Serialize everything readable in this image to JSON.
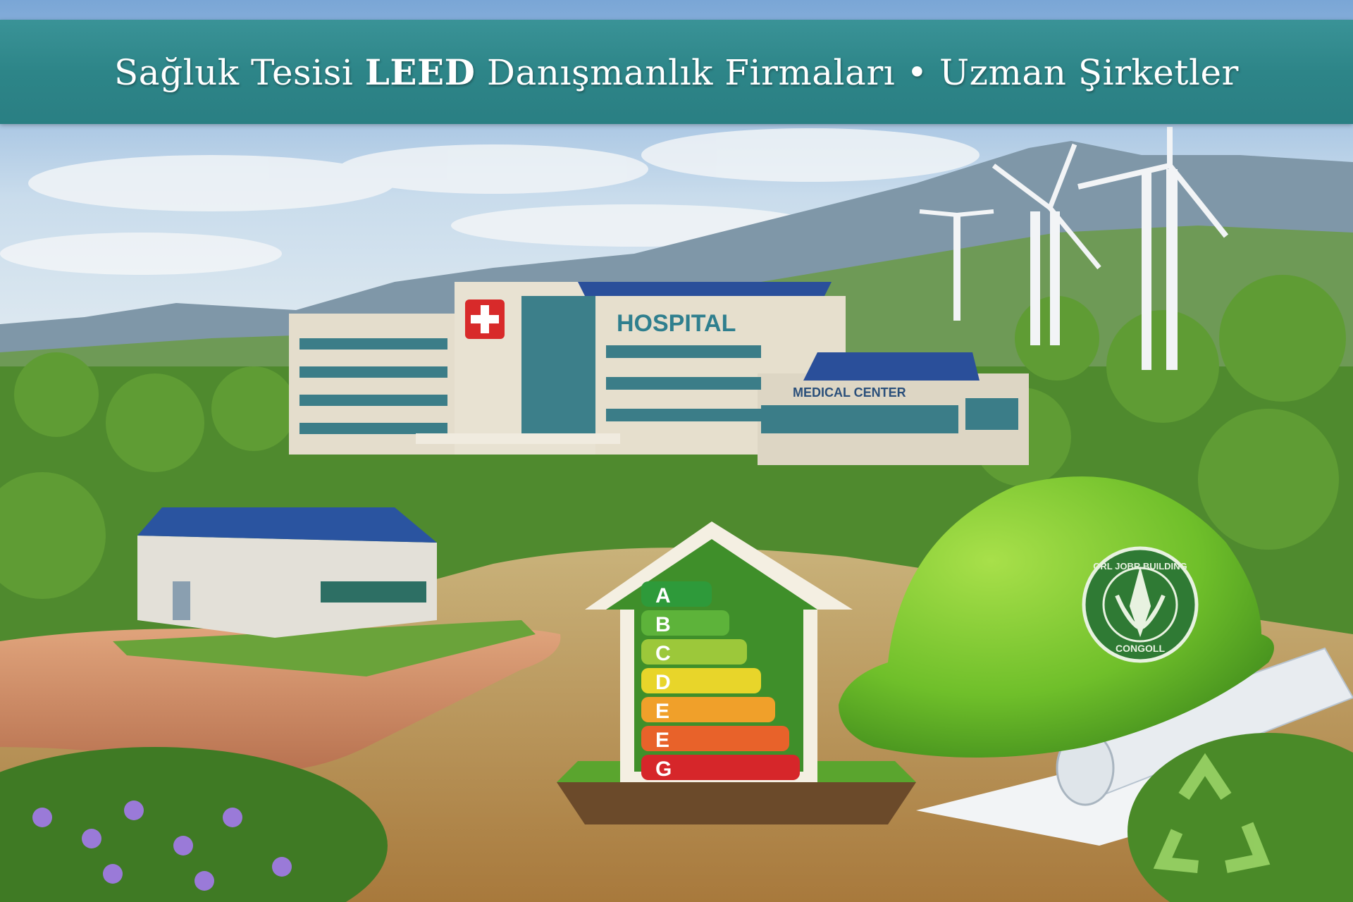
{
  "banner": {
    "title_part1": "Sağluk Tesisi",
    "title_bold": "LEED",
    "title_part2": "Danışmanlık Firmaları • Uzman Şirketler",
    "color": "#2d8588"
  },
  "scene": {
    "hospital_sign": "HOSPITAL",
    "medical_center_sign": "MEDICAL CENTER",
    "energy_label": {
      "letters": [
        "A",
        "B",
        "C",
        "D",
        "E",
        "E",
        "G"
      ],
      "colors": [
        "#2e9a3a",
        "#5db33a",
        "#9cc83a",
        "#e8d52a",
        "#f0a02a",
        "#e8622a",
        "#d6262a"
      ]
    },
    "helmet_badge_top": "GRL JOBR BUILDING",
    "helmet_badge_bottom": "CONGOLL",
    "icons": [
      "red-cross-icon",
      "recycle-icon",
      "wind-turbine-icon",
      "solar-panel-icon"
    ]
  }
}
